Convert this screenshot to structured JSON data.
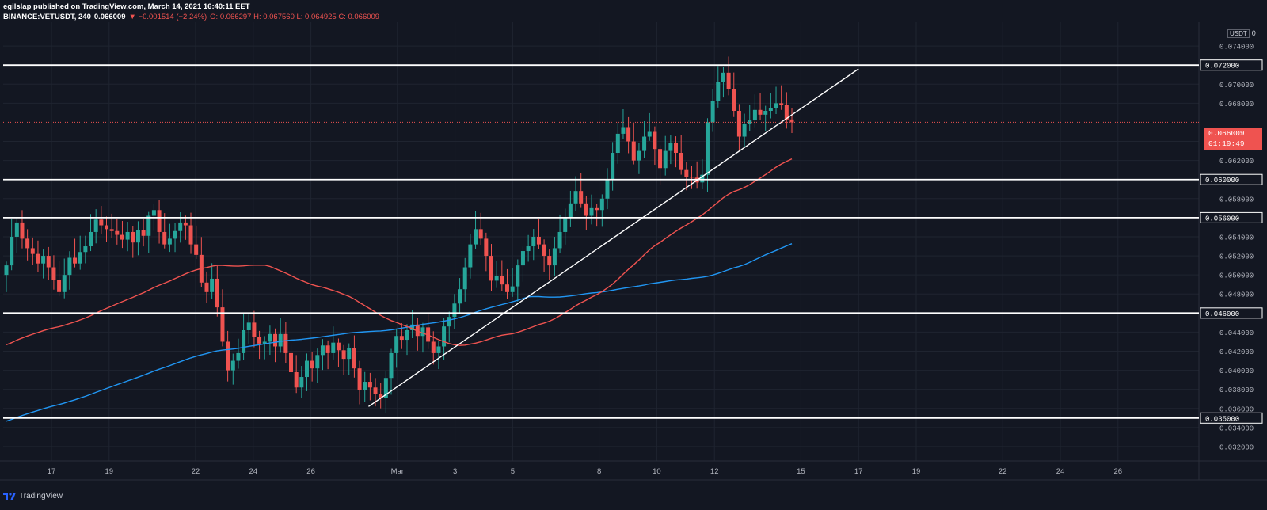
{
  "header": {
    "line1": "egilslap published on TradingView.com, March 14, 2021 16:40:11 EET",
    "symbol": "BINANCE:VETUSDT, 240",
    "last": "0.066009",
    "change": "▼ −0.001514 (−2.24%)",
    "ohlc": "O: 0.066297 H: 0.067560 L: 0.064925 C: 0.066009"
  },
  "price_axis": {
    "currency": "USDT",
    "zero_label": "0",
    "current_price": "0.066009",
    "countdown": "01:19:49"
  },
  "footer": {
    "brand": "TradingView"
  },
  "colors": {
    "background": "#131722",
    "grid": "#1f2430",
    "up": "#26a69a",
    "down": "#ef5350",
    "ma_fast": "#ef5350",
    "ma_slow": "#2196f3",
    "lines": "#ffffff"
  },
  "chart_data": {
    "type": "candlestick",
    "title": "",
    "ylim": [
      0.0305,
      0.0765
    ],
    "y_ticks": [
      0.032,
      0.034,
      0.036,
      0.038,
      0.04,
      0.042,
      0.044,
      0.048,
      0.05,
      0.052,
      0.054,
      0.058,
      0.062,
      0.064,
      0.068,
      0.07,
      0.074
    ],
    "horizontal_levels": [
      0.035,
      0.046,
      0.056,
      0.06,
      0.072
    ],
    "x_ticks": [
      "17",
      "19",
      "22",
      "24",
      "26",
      "Mar",
      "3",
      "5",
      "8",
      "10",
      "12",
      "15",
      "17",
      "19",
      "22",
      "24",
      "26"
    ],
    "trendline": {
      "from": [
        "Feb 28",
        0.0362
      ],
      "to": [
        "Mar 17",
        0.0716
      ]
    },
    "closes": [
      0.051,
      0.054,
      0.0555,
      0.0538,
      0.0528,
      0.0522,
      0.0512,
      0.052,
      0.0508,
      0.0495,
      0.0482,
      0.05,
      0.0518,
      0.0512,
      0.0524,
      0.053,
      0.0545,
      0.0558,
      0.0552,
      0.0548,
      0.0546,
      0.0542,
      0.0537,
      0.0545,
      0.0534,
      0.0547,
      0.0541,
      0.0562,
      0.0568,
      0.0545,
      0.0532,
      0.0538,
      0.0546,
      0.0555,
      0.0552,
      0.0532,
      0.0521,
      0.0492,
      0.0482,
      0.0496,
      0.0466,
      0.043,
      0.04,
      0.041,
      0.0418,
      0.0442,
      0.045,
      0.0435,
      0.0428,
      0.043,
      0.0438,
      0.0425,
      0.0438,
      0.0418,
      0.0398,
      0.0382,
      0.0393,
      0.041,
      0.0402,
      0.0416,
      0.0426,
      0.0418,
      0.0429,
      0.0421,
      0.0412,
      0.0423,
      0.0402,
      0.0379,
      0.0388,
      0.0382,
      0.0375,
      0.0371,
      0.0392,
      0.0418,
      0.0436,
      0.0432,
      0.0442,
      0.0448,
      0.0436,
      0.0445,
      0.043,
      0.0418,
      0.0425,
      0.0446,
      0.0456,
      0.047,
      0.0485,
      0.0508,
      0.0532,
      0.0548,
      0.0538,
      0.052,
      0.0494,
      0.0499,
      0.049,
      0.0482,
      0.0488,
      0.051,
      0.0525,
      0.053,
      0.054,
      0.0532,
      0.052,
      0.051,
      0.0528,
      0.0545,
      0.056,
      0.0575,
      0.0588,
      0.0575,
      0.0562,
      0.057,
      0.0568,
      0.058,
      0.06,
      0.0628,
      0.0648,
      0.0655,
      0.064,
      0.062,
      0.063,
      0.0645,
      0.065,
      0.0632,
      0.0612,
      0.063,
      0.0638,
      0.0628,
      0.061,
      0.0603,
      0.0602,
      0.0597,
      0.0605,
      0.066,
      0.0682,
      0.0702,
      0.0712,
      0.0695,
      0.0672,
      0.0645,
      0.0658,
      0.0662,
      0.0673,
      0.0668,
      0.0672,
      0.0675,
      0.068,
      0.0678,
      0.0663,
      0.066
    ]
  }
}
